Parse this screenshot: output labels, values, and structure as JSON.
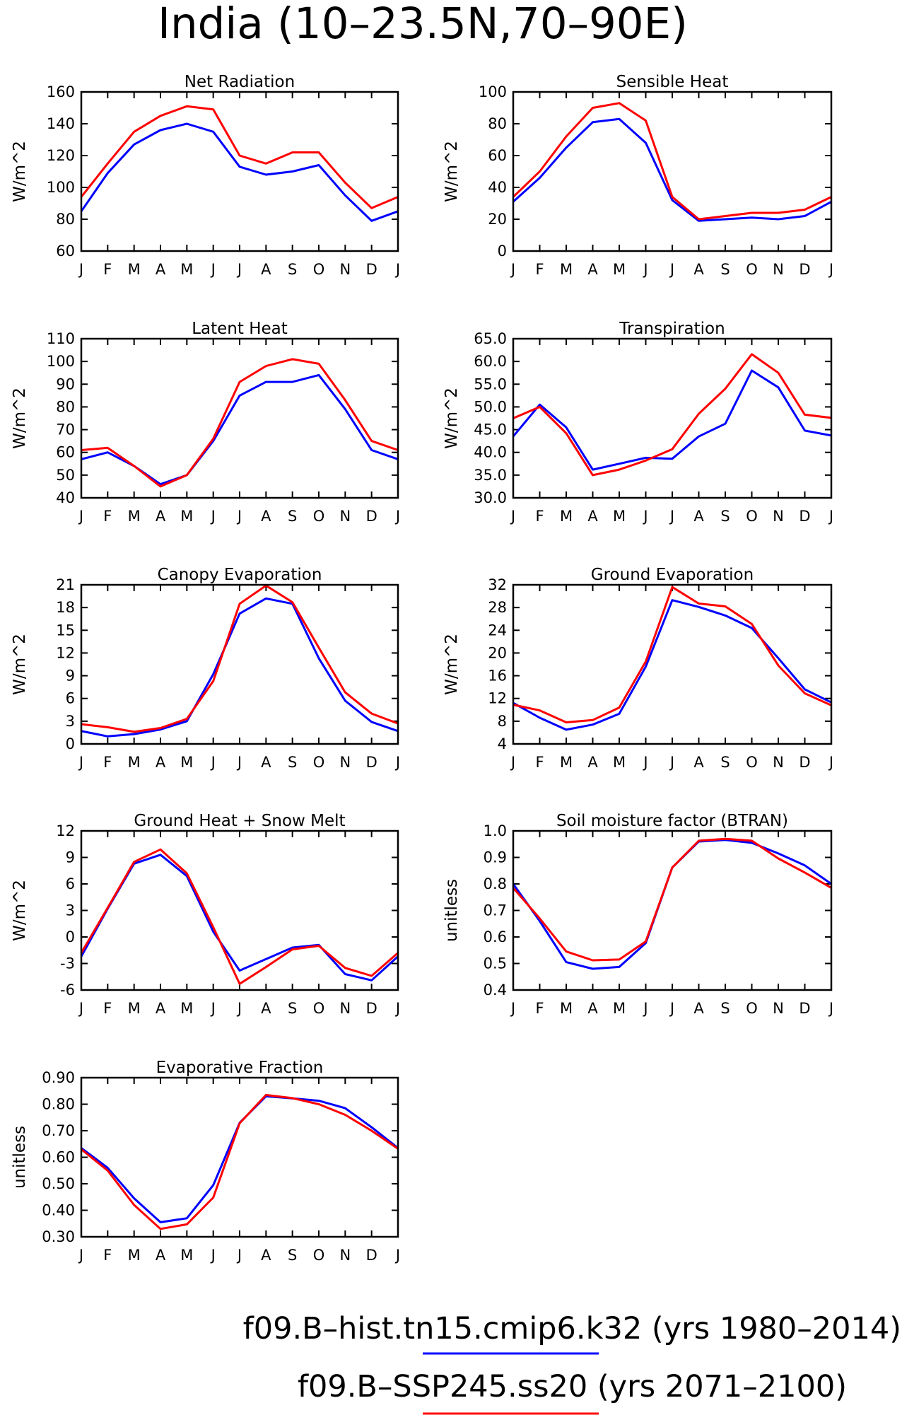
{
  "title": "India (10–23.5N,70–90E)",
  "legend": [
    {
      "label": "f09.B–hist.tn15.cmip6.k32 (yrs 1980–2014)",
      "color": "#0000ff"
    },
    {
      "label": "f09.B–SSP245.ss20 (yrs 2071–2100)",
      "color": "#ff0000"
    }
  ],
  "chart_data": [
    {
      "type": "line",
      "title": "Net Radiation",
      "ylabel": "W/m^2",
      "categories": [
        "J",
        "F",
        "M",
        "A",
        "M",
        "J",
        "J",
        "A",
        "S",
        "O",
        "N",
        "D",
        "J"
      ],
      "ylim": [
        60,
        160
      ],
      "yticks": [
        "60",
        "80",
        "100",
        "120",
        "140",
        "160"
      ],
      "series": [
        {
          "color": "#0000ff",
          "values": [
            85,
            109,
            127,
            136,
            140,
            135,
            113,
            108,
            110,
            114,
            95,
            79,
            85
          ]
        },
        {
          "color": "#ff0000",
          "values": [
            94,
            115,
            135,
            145,
            151,
            149,
            120,
            115,
            122,
            122,
            103,
            87,
            94
          ]
        }
      ]
    },
    {
      "type": "line",
      "title": "Sensible Heat",
      "ylabel": "W/m^2",
      "categories": [
        "J",
        "F",
        "M",
        "A",
        "M",
        "J",
        "J",
        "A",
        "S",
        "O",
        "N",
        "D",
        "J"
      ],
      "ylim": [
        0,
        100
      ],
      "yticks": [
        "0",
        "20",
        "40",
        "60",
        "80",
        "100"
      ],
      "series": [
        {
          "color": "#0000ff",
          "values": [
            31,
            46,
            65,
            81,
            83,
            68,
            32,
            19,
            20,
            21,
            20,
            22,
            31
          ]
        },
        {
          "color": "#ff0000",
          "values": [
            34,
            50,
            72,
            90,
            93,
            82,
            34,
            20,
            22,
            24,
            24,
            26,
            34
          ]
        }
      ]
    },
    {
      "type": "line",
      "title": "Latent Heat",
      "ylabel": "W/m^2",
      "categories": [
        "J",
        "F",
        "M",
        "A",
        "M",
        "J",
        "J",
        "A",
        "S",
        "O",
        "N",
        "D",
        "J"
      ],
      "ylim": [
        40,
        110
      ],
      "yticks": [
        "40",
        "50",
        "60",
        "70",
        "80",
        "90",
        "100",
        "110"
      ],
      "series": [
        {
          "color": "#0000ff",
          "values": [
            57,
            60,
            54,
            46,
            50,
            65,
            85,
            91,
            91,
            94,
            79,
            61,
            57
          ]
        },
        {
          "color": "#ff0000",
          "values": [
            61,
            62,
            54,
            45,
            50,
            66,
            91,
            98,
            101,
            99,
            83,
            65,
            61
          ]
        }
      ]
    },
    {
      "type": "line",
      "title": "Transpiration",
      "ylabel": "W/m^2",
      "categories": [
        "J",
        "F",
        "M",
        "A",
        "M",
        "J",
        "J",
        "A",
        "S",
        "O",
        "N",
        "D",
        "J"
      ],
      "ylim": [
        30,
        65
      ],
      "yticks": [
        "30.0",
        "35.0",
        "40.0",
        "45.0",
        "50.0",
        "55.0",
        "60.0",
        "65.0"
      ],
      "series": [
        {
          "color": "#0000ff",
          "values": [
            43.5,
            50.5,
            45.5,
            36.2,
            37.5,
            38.8,
            38.6,
            43.5,
            46.3,
            58.0,
            54.3,
            44.8,
            43.7
          ]
        },
        {
          "color": "#ff0000",
          "values": [
            47.5,
            50.0,
            44.2,
            35.0,
            36.2,
            38.2,
            40.7,
            48.5,
            54.0,
            61.6,
            57.5,
            48.3,
            47.6
          ]
        }
      ]
    },
    {
      "type": "line",
      "title": "Canopy Evaporation",
      "ylabel": "W/m^2",
      "categories": [
        "J",
        "F",
        "M",
        "A",
        "M",
        "J",
        "J",
        "A",
        "S",
        "O",
        "N",
        "D",
        "J"
      ],
      "ylim": [
        0,
        21
      ],
      "yticks": [
        "0",
        "3",
        "6",
        "9",
        "12",
        "15",
        "18",
        "21"
      ],
      "series": [
        {
          "color": "#0000ff",
          "values": [
            1.7,
            1.0,
            1.3,
            1.9,
            3.0,
            9.2,
            17.2,
            19.2,
            18.5,
            11.3,
            5.7,
            2.9,
            1.7
          ]
        },
        {
          "color": "#ff0000",
          "values": [
            2.6,
            2.2,
            1.6,
            2.1,
            3.3,
            8.3,
            18.5,
            20.9,
            18.7,
            12.7,
            6.8,
            4.0,
            2.7
          ]
        }
      ]
    },
    {
      "type": "line",
      "title": "Ground Evaporation",
      "ylabel": "W/m^2",
      "categories": [
        "J",
        "F",
        "M",
        "A",
        "M",
        "J",
        "J",
        "A",
        "S",
        "O",
        "N",
        "D",
        "J"
      ],
      "ylim": [
        4,
        32
      ],
      "yticks": [
        "4",
        "8",
        "12",
        "16",
        "20",
        "24",
        "28",
        "32"
      ],
      "series": [
        {
          "color": "#0000ff",
          "values": [
            11.2,
            8.6,
            6.5,
            7.4,
            9.3,
            17.6,
            29.3,
            28.1,
            26.6,
            24.4,
            19.1,
            13.6,
            11.3
          ]
        },
        {
          "color": "#ff0000",
          "values": [
            10.9,
            9.9,
            7.8,
            8.2,
            10.4,
            18.5,
            31.6,
            28.7,
            28.2,
            25.1,
            17.8,
            12.9,
            10.8
          ]
        }
      ]
    },
    {
      "type": "line",
      "title": "Ground Heat + Snow Melt",
      "ylabel": "W/m^2",
      "categories": [
        "J",
        "F",
        "M",
        "A",
        "M",
        "J",
        "J",
        "A",
        "S",
        "O",
        "N",
        "D",
        "J"
      ],
      "ylim": [
        -6,
        12
      ],
      "yticks": [
        "-6",
        "-3",
        "0",
        "3",
        "6",
        "9",
        "12"
      ],
      "series": [
        {
          "color": "#0000ff",
          "values": [
            -2.2,
            3.2,
            8.3,
            9.3,
            6.9,
            0.6,
            -3.8,
            -2.5,
            -1.2,
            -0.9,
            -4.2,
            -4.9,
            -2.2
          ]
        },
        {
          "color": "#ff0000",
          "values": [
            -1.8,
            3.3,
            8.5,
            9.9,
            7.2,
            1.1,
            -5.3,
            -3.4,
            -1.4,
            -1.0,
            -3.5,
            -4.4,
            -1.8
          ]
        }
      ]
    },
    {
      "type": "line",
      "title": "Soil moisture factor (BTRAN)",
      "ylabel": "unitless",
      "categories": [
        "J",
        "F",
        "M",
        "A",
        "M",
        "J",
        "J",
        "A",
        "S",
        "O",
        "N",
        "D",
        "J"
      ],
      "ylim": [
        0.4,
        1.0
      ],
      "yticks": [
        "0.4",
        "0.5",
        "0.6",
        "0.7",
        "0.8",
        "0.9",
        "1.0"
      ],
      "series": [
        {
          "color": "#0000ff",
          "values": [
            0.8,
            0.66,
            0.505,
            0.48,
            0.487,
            0.577,
            0.862,
            0.96,
            0.966,
            0.955,
            0.915,
            0.87,
            0.8
          ]
        },
        {
          "color": "#ff0000",
          "values": [
            0.785,
            0.67,
            0.545,
            0.512,
            0.515,
            0.583,
            0.862,
            0.963,
            0.97,
            0.963,
            0.896,
            0.843,
            0.785
          ]
        }
      ]
    },
    {
      "type": "line",
      "title": "Evaporative Fraction",
      "ylabel": "unitless",
      "categories": [
        "J",
        "F",
        "M",
        "A",
        "M",
        "J",
        "J",
        "A",
        "S",
        "O",
        "N",
        "D",
        "J"
      ],
      "ylim": [
        0.3,
        0.9
      ],
      "yticks": [
        "0.30",
        "0.40",
        "0.50",
        "0.60",
        "0.70",
        "0.80",
        "0.90"
      ],
      "series": [
        {
          "color": "#0000ff",
          "values": [
            0.635,
            0.56,
            0.445,
            0.355,
            0.37,
            0.495,
            0.73,
            0.83,
            0.822,
            0.813,
            0.785,
            0.713,
            0.635
          ]
        },
        {
          "color": "#ff0000",
          "values": [
            0.63,
            0.55,
            0.42,
            0.33,
            0.347,
            0.448,
            0.728,
            0.835,
            0.823,
            0.8,
            0.76,
            0.7,
            0.632
          ]
        }
      ]
    }
  ]
}
